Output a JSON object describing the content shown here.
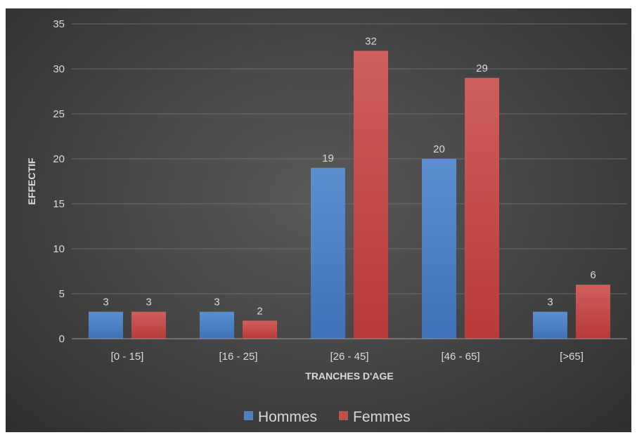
{
  "chart_data": {
    "type": "bar",
    "categories": [
      "[0 - 15]",
      "[16 - 25]",
      "[26 - 45]",
      "[46 - 65]",
      "[>65]"
    ],
    "series": [
      {
        "name": "Hommes",
        "values": [
          3,
          3,
          19,
          20,
          3
        ],
        "color": "#4f81bd"
      },
      {
        "name": "Femmes",
        "values": [
          3,
          2,
          32,
          29,
          6
        ],
        "color": "#c0504d"
      }
    ],
    "xlabel": "TRANCHES D'AGE",
    "ylabel": "EFFECTIF",
    "ylim": [
      0,
      35
    ],
    "yticks": [
      0,
      5,
      10,
      15,
      20,
      25,
      30,
      35
    ],
    "grid": true,
    "legend_position": "bottom",
    "background": "#404040"
  }
}
